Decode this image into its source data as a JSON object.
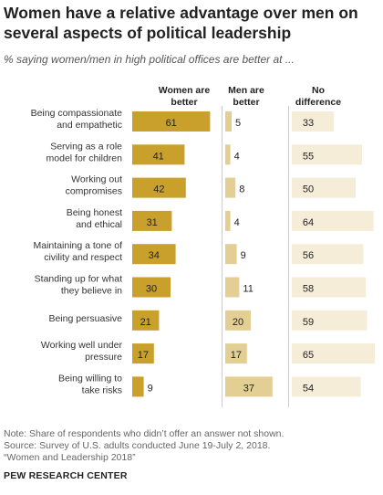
{
  "title": "Women have a relative advantage over men on several aspects of political leadership",
  "subtitle": "% saying women/men in high political offices are better at ...",
  "note_lines": [
    "Note: Share of respondents who didn’t offer an answer not shown.",
    "Source: Survey of U.S. adults conducted June 19-July 2, 2018.",
    "“Women and Leadership 2018”"
  ],
  "source_org": "PEW RESEARCH CENTER",
  "colors": {
    "women": "#C8A02B",
    "men": "#E3CF94",
    "no_difference": "#F6EDD8",
    "divider": "#CCCCCC"
  },
  "chart_data": {
    "type": "bar",
    "orientation": "horizontal",
    "layout": "small-multiples",
    "categories": [
      [
        "Being compassionate",
        "and empathetic"
      ],
      [
        "Serving as a role",
        "model for children"
      ],
      [
        "Working out",
        "compromises"
      ],
      [
        "Being honest",
        "and ethical"
      ],
      [
        "Maintaining a tone of",
        "civility and respect"
      ],
      [
        "Standing up for what",
        "they believe in"
      ],
      [
        "Being persuasive"
      ],
      [
        "Working well under",
        "pressure"
      ],
      [
        "Being willing to",
        "take risks"
      ]
    ],
    "series": [
      {
        "name": [
          "Women are",
          "better"
        ],
        "values": [
          61,
          41,
          42,
          31,
          34,
          30,
          21,
          17,
          9
        ]
      },
      {
        "name": [
          "Men are",
          "better"
        ],
        "values": [
          5,
          4,
          8,
          4,
          9,
          11,
          20,
          17,
          37
        ]
      },
      {
        "name": [
          "No",
          "difference"
        ],
        "values": [
          33,
          55,
          50,
          64,
          56,
          58,
          59,
          65,
          54
        ]
      }
    ]
  }
}
